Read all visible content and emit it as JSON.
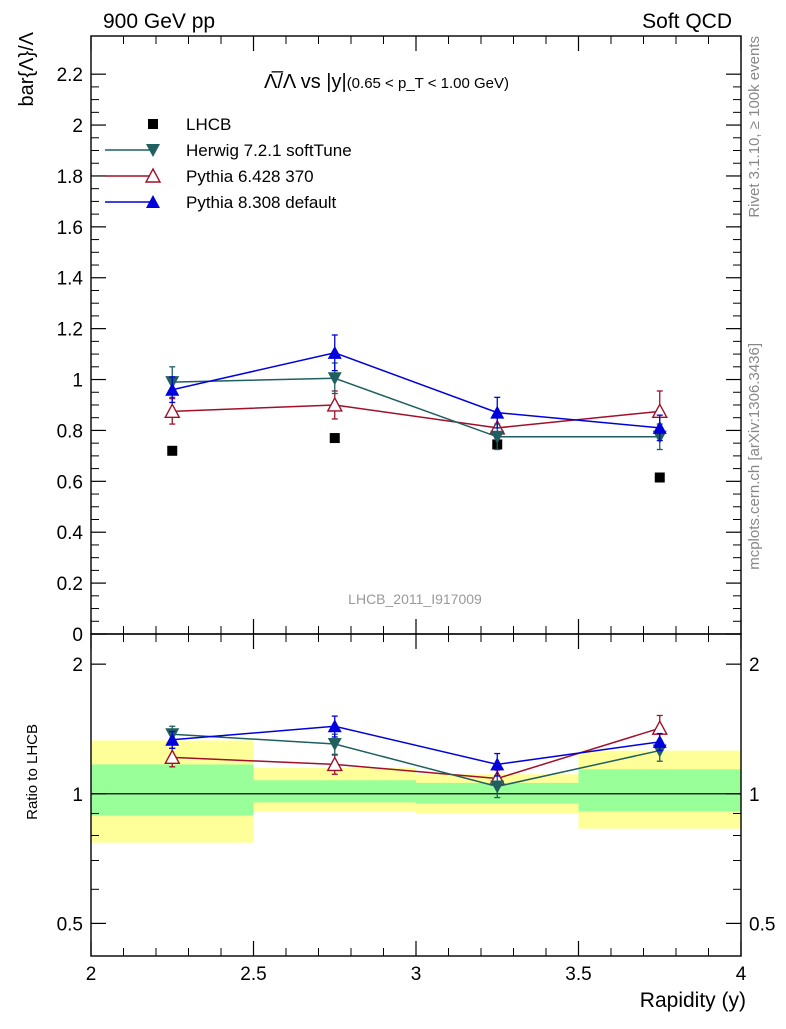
{
  "header": {
    "left": "900 GeV pp",
    "right": "Soft QCD"
  },
  "side_labels": {
    "rivet": "Rivet 3.1.10, ≥ 100k events",
    "mcplots": "mcplots.cern.ch [arXiv:1306.3436]"
  },
  "analysis_id": "LHCB_2011_I917009",
  "colors": {
    "lhcb": "#000000",
    "herwig": "#1f5f5f",
    "pythia6": "#a0102a",
    "pythia8": "#0000dd",
    "band_yellow": "#ffff99",
    "band_green": "#99ff99"
  },
  "chart_data": [
    {
      "type": "line",
      "title_main": "Λ̅/Λ vs |y|",
      "title_sub": "(0.65 < p_T < 1.00 GeV)",
      "ylabel": "bar{Λ}/Λ",
      "xlim": [
        2,
        4
      ],
      "ylim": [
        0,
        2.35
      ],
      "yticks": [
        0,
        0.2,
        0.4,
        0.6,
        0.8,
        1,
        1.2,
        1.4,
        1.6,
        1.8,
        2,
        2.2
      ],
      "ytick_labels": [
        "0",
        "0.2",
        "0.4",
        "0.6",
        "0.8",
        "1",
        "1.2",
        "1.4",
        "1.6",
        "1.8",
        "2",
        "2.2"
      ],
      "x": [
        2.25,
        2.75,
        3.25,
        3.75
      ],
      "legend_position": "top-left",
      "series": [
        {
          "name": "LHCB",
          "key": "lhcb",
          "marker": "square",
          "values": [
            0.72,
            0.77,
            0.745,
            0.615
          ],
          "errors": [
            0.0,
            0.0,
            0.0,
            0.0
          ],
          "drawline": false
        },
        {
          "name": "Herwig 7.2.1 softTune",
          "key": "herwig",
          "marker": "triangle-down",
          "values": [
            0.99,
            1.005,
            0.775,
            0.775
          ],
          "errors": [
            0.06,
            0.06,
            0.05,
            0.05
          ],
          "drawline": true
        },
        {
          "name": "Pythia 6.428 370",
          "key": "pythia6",
          "marker": "triangle-up-open",
          "values": [
            0.875,
            0.9,
            0.81,
            0.875
          ],
          "errors": [
            0.05,
            0.055,
            0.04,
            0.08
          ],
          "drawline": true
        },
        {
          "name": "Pythia 8.308 default",
          "key": "pythia8",
          "marker": "triangle-up",
          "values": [
            0.96,
            1.105,
            0.87,
            0.81
          ],
          "errors": [
            0.05,
            0.07,
            0.06,
            0.05
          ],
          "drawline": true
        }
      ]
    },
    {
      "type": "line",
      "ylabel": "Ratio to LHCB",
      "xlabel": "Rapidity (y)",
      "xlim": [
        2,
        4
      ],
      "ylim": [
        0.42,
        2.35
      ],
      "yscale": "log",
      "xticks": [
        2,
        2.5,
        3,
        3.5,
        4
      ],
      "xtick_labels": [
        "2",
        "2.5",
        "3",
        "3.5",
        "4"
      ],
      "yticks": [
        0.5,
        1,
        2
      ],
      "ytick_labels": [
        "0.5",
        "1",
        "2"
      ],
      "x": [
        2.25,
        2.75,
        3.25,
        3.75
      ],
      "bands": [
        {
          "x0": 2.0,
          "x1": 2.5,
          "yellow": [
            0.77,
            1.33
          ],
          "green": [
            0.89,
            1.17
          ]
        },
        {
          "x0": 2.5,
          "x1": 3.0,
          "yellow": [
            0.91,
            1.15
          ],
          "green": [
            0.955,
            1.075
          ]
        },
        {
          "x0": 3.0,
          "x1": 3.5,
          "yellow": [
            0.9,
            1.11
          ],
          "green": [
            0.95,
            1.06
          ]
        },
        {
          "x0": 3.5,
          "x1": 4.0,
          "yellow": [
            0.83,
            1.26
          ],
          "green": [
            0.91,
            1.14
          ]
        }
      ],
      "series": [
        {
          "name": "Herwig 7.2.1 softTune",
          "key": "herwig",
          "marker": "triangle-down",
          "values": [
            1.375,
            1.305,
            1.04,
            1.26
          ],
          "errors": [
            0.06,
            0.07,
            0.06,
            0.07
          ]
        },
        {
          "name": "Pythia 6.428 370",
          "key": "pythia6",
          "marker": "triangle-up-open",
          "values": [
            1.215,
            1.17,
            1.085,
            1.42
          ],
          "errors": [
            0.06,
            0.06,
            0.05,
            0.1
          ]
        },
        {
          "name": "Pythia 8.308 default",
          "key": "pythia8",
          "marker": "triangle-up",
          "values": [
            1.335,
            1.435,
            1.17,
            1.32
          ],
          "errors": [
            0.06,
            0.08,
            0.07,
            0.06
          ]
        }
      ]
    }
  ]
}
